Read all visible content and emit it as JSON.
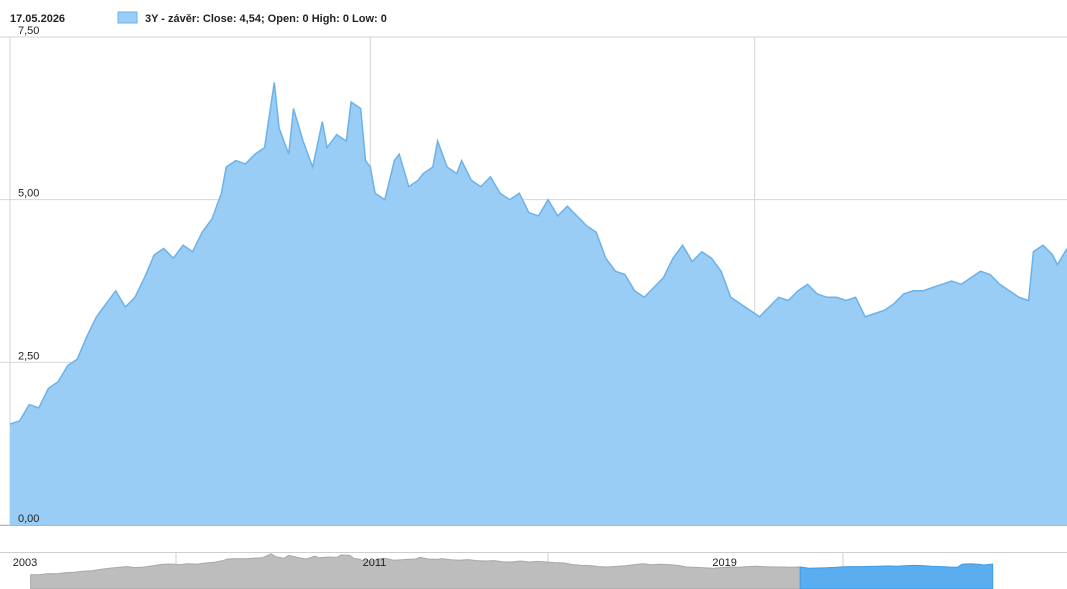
{
  "header": {
    "date": "17.05.2026",
    "legend_label": "3Y - závěr: Close: 4,54; Open: 0 High: 0 Low: 0"
  },
  "colors": {
    "area_fill": "#99cdf5",
    "area_stroke": "#6cb2ea",
    "grid": "#d6d6d6",
    "navigator_fill_inactive": "#bdbdbd",
    "navigator_fill_active": "#5aadee"
  },
  "chart_data": {
    "type": "area",
    "ylim": [
      0,
      7.5
    ],
    "yticks": [
      {
        "value": 0,
        "label": "0,00"
      },
      {
        "value": 2.5,
        "label": "2,50"
      },
      {
        "value": 5,
        "label": "5,00"
      },
      {
        "value": 7.5,
        "label": "7,50"
      }
    ],
    "xlim": [
      2003.5,
      2025.5
    ],
    "x_gridlines": [
      2011,
      2019
    ],
    "grid": true,
    "series": [
      {
        "values": [
          [
            2003.5,
            1.55
          ],
          [
            2003.7,
            1.6
          ],
          [
            2003.9,
            1.85
          ],
          [
            2004.1,
            1.8
          ],
          [
            2004.3,
            2.1
          ],
          [
            2004.5,
            2.2
          ],
          [
            2004.7,
            2.45
          ],
          [
            2004.9,
            2.55
          ],
          [
            2005.1,
            2.9
          ],
          [
            2005.3,
            3.2
          ],
          [
            2005.5,
            3.4
          ],
          [
            2005.7,
            3.6
          ],
          [
            2005.9,
            3.35
          ],
          [
            2006.1,
            3.5
          ],
          [
            2006.3,
            3.8
          ],
          [
            2006.5,
            4.15
          ],
          [
            2006.7,
            4.25
          ],
          [
            2006.9,
            4.1
          ],
          [
            2007.1,
            4.3
          ],
          [
            2007.3,
            4.2
          ],
          [
            2007.5,
            4.5
          ],
          [
            2007.7,
            4.7
          ],
          [
            2007.9,
            5.1
          ],
          [
            2008.0,
            5.5
          ],
          [
            2008.2,
            5.6
          ],
          [
            2008.4,
            5.55
          ],
          [
            2008.6,
            5.7
          ],
          [
            2008.8,
            5.8
          ],
          [
            2008.9,
            6.3
          ],
          [
            2009.0,
            6.8
          ],
          [
            2009.1,
            6.1
          ],
          [
            2009.3,
            5.7
          ],
          [
            2009.4,
            6.4
          ],
          [
            2009.6,
            5.9
          ],
          [
            2009.8,
            5.5
          ],
          [
            2010.0,
            6.2
          ],
          [
            2010.1,
            5.8
          ],
          [
            2010.3,
            6.0
          ],
          [
            2010.5,
            5.9
          ],
          [
            2010.6,
            6.5
          ],
          [
            2010.8,
            6.4
          ],
          [
            2010.9,
            5.6
          ],
          [
            2011.0,
            5.5
          ],
          [
            2011.1,
            5.1
          ],
          [
            2011.3,
            5.0
          ],
          [
            2011.5,
            5.6
          ],
          [
            2011.6,
            5.7
          ],
          [
            2011.8,
            5.2
          ],
          [
            2012.0,
            5.3
          ],
          [
            2012.1,
            5.4
          ],
          [
            2012.3,
            5.5
          ],
          [
            2012.4,
            5.9
          ],
          [
            2012.6,
            5.5
          ],
          [
            2012.8,
            5.4
          ],
          [
            2012.9,
            5.6
          ],
          [
            2013.1,
            5.3
          ],
          [
            2013.3,
            5.2
          ],
          [
            2013.5,
            5.35
          ],
          [
            2013.7,
            5.1
          ],
          [
            2013.9,
            5.0
          ],
          [
            2014.1,
            5.1
          ],
          [
            2014.3,
            4.8
          ],
          [
            2014.5,
            4.75
          ],
          [
            2014.7,
            5.0
          ],
          [
            2014.9,
            4.75
          ],
          [
            2015.1,
            4.9
          ],
          [
            2015.3,
            4.75
          ],
          [
            2015.5,
            4.6
          ],
          [
            2015.7,
            4.5
          ],
          [
            2015.9,
            4.1
          ],
          [
            2016.1,
            3.9
          ],
          [
            2016.3,
            3.85
          ],
          [
            2016.5,
            3.6
          ],
          [
            2016.7,
            3.5
          ],
          [
            2016.9,
            3.65
          ],
          [
            2017.1,
            3.8
          ],
          [
            2017.3,
            4.1
          ],
          [
            2017.5,
            4.3
          ],
          [
            2017.7,
            4.05
          ],
          [
            2017.9,
            4.2
          ],
          [
            2018.1,
            4.1
          ],
          [
            2018.3,
            3.9
          ],
          [
            2018.5,
            3.5
          ],
          [
            2018.7,
            3.4
          ],
          [
            2018.9,
            3.3
          ],
          [
            2019.1,
            3.2
          ],
          [
            2019.3,
            3.35
          ],
          [
            2019.5,
            3.5
          ],
          [
            2019.7,
            3.45
          ],
          [
            2019.9,
            3.6
          ],
          [
            2020.1,
            3.7
          ],
          [
            2020.3,
            3.55
          ],
          [
            2020.5,
            3.5
          ],
          [
            2020.7,
            3.5
          ],
          [
            2020.9,
            3.45
          ],
          [
            2021.1,
            3.5
          ],
          [
            2021.3,
            3.2
          ],
          [
            2021.5,
            3.25
          ],
          [
            2021.7,
            3.3
          ],
          [
            2021.9,
            3.4
          ],
          [
            2022.1,
            3.55
          ],
          [
            2022.3,
            3.6
          ],
          [
            2022.5,
            3.6
          ],
          [
            2022.7,
            3.65
          ],
          [
            2022.9,
            3.7
          ],
          [
            2023.1,
            3.75
          ],
          [
            2023.3,
            3.7
          ],
          [
            2023.5,
            3.8
          ],
          [
            2023.7,
            3.9
          ],
          [
            2023.9,
            3.85
          ],
          [
            2024.1,
            3.7
          ],
          [
            2024.3,
            3.6
          ],
          [
            2024.5,
            3.5
          ],
          [
            2024.7,
            3.45
          ],
          [
            2024.8,
            4.2
          ],
          [
            2025.0,
            4.3
          ],
          [
            2025.2,
            4.15
          ],
          [
            2025.3,
            4.0
          ],
          [
            2025.5,
            4.25
          ]
        ]
      }
    ],
    "navigator": {
      "labels": [
        {
          "x": 2003,
          "text": "2003"
        },
        {
          "x": 2011,
          "text": "2011"
        },
        {
          "x": 2019,
          "text": "2019"
        }
      ],
      "xlim": [
        2002.8,
        2027.2
      ],
      "selected_range": [
        2021.0,
        2027.2
      ]
    }
  }
}
